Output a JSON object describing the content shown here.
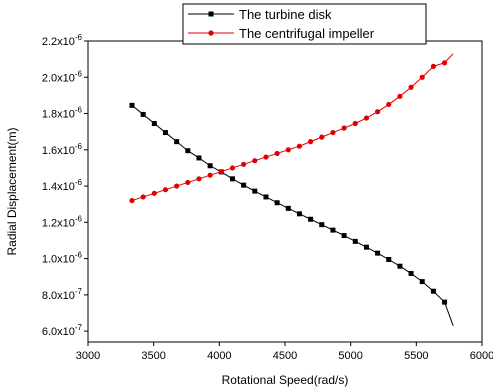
{
  "chart_data": {
    "type": "line",
    "xlabel": "Rotational Speed(rad/s)",
    "ylabel": "Radial Displacement(m)",
    "xlim": [
      3000,
      6000
    ],
    "ylim": [
      5.4e-07,
      2.2e-06
    ],
    "x_ticks": [
      3000,
      3500,
      4000,
      4500,
      5000,
      5500,
      6000
    ],
    "x_tick_labels": [
      "3000",
      "3500",
      "4000",
      "4500",
      "5000",
      "5500",
      "6000"
    ],
    "y_ticks": [
      6e-07,
      8e-07,
      1e-06,
      1.2e-06,
      1.4e-06,
      1.6e-06,
      1.8e-06,
      2e-06,
      2.2e-06
    ],
    "y_tick_mantissas": [
      "6.0x10",
      "8.0x10",
      "1.0x10",
      "1.2x10",
      "1.4x10",
      "1.6x10",
      "1.8x10",
      "2.0x10",
      "2.2x10"
    ],
    "y_tick_exponents": [
      "-7",
      "-7",
      "-6",
      "-6",
      "-6",
      "-6",
      "-6",
      "-6",
      "-6"
    ],
    "grid": false,
    "legend_position": "top-right",
    "series": [
      {
        "name": "The turbine disk",
        "color": "#000000",
        "marker": "square",
        "x": [
          3335,
          3420,
          3505,
          3590,
          3675,
          3760,
          3845,
          3930,
          4015,
          4100,
          4185,
          4270,
          4355,
          4440,
          4525,
          4610,
          4695,
          4780,
          4865,
          4950,
          5035,
          5120,
          5205,
          5290,
          5375,
          5460,
          5545,
          5630,
          5715
        ],
        "y": [
          1.845e-06,
          1.795e-06,
          1.745e-06,
          1.695e-06,
          1.645e-06,
          1.595e-06,
          1.555e-06,
          1.512e-06,
          1.478e-06,
          1.44e-06,
          1.405e-06,
          1.372e-06,
          1.34e-06,
          1.308e-06,
          1.277e-06,
          1.247e-06,
          1.217e-06,
          1.187e-06,
          1.157e-06,
          1.127e-06,
          1.095e-06,
          1.063e-06,
          1.03e-06,
          9.95e-07,
          9.58e-07,
          9.18e-07,
          8.73e-07,
          8.2e-07,
          7.6e-07
        ],
        "line_end": [
          5780,
          6.3e-07
        ]
      },
      {
        "name": "The centrifugal impeller",
        "color": "#e00000",
        "marker": "circle",
        "x": [
          3335,
          3420,
          3505,
          3590,
          3675,
          3760,
          3845,
          3930,
          4015,
          4100,
          4185,
          4270,
          4355,
          4440,
          4525,
          4610,
          4695,
          4780,
          4865,
          4950,
          5035,
          5120,
          5205,
          5290,
          5375,
          5460,
          5545,
          5630,
          5715
        ],
        "y": [
          1.32e-06,
          1.34e-06,
          1.36e-06,
          1.38e-06,
          1.4e-06,
          1.42e-06,
          1.44e-06,
          1.46e-06,
          1.48e-06,
          1.5e-06,
          1.52e-06,
          1.54e-06,
          1.56e-06,
          1.58e-06,
          1.6e-06,
          1.62e-06,
          1.645e-06,
          1.67e-06,
          1.695e-06,
          1.72e-06,
          1.745e-06,
          1.775e-06,
          1.81e-06,
          1.85e-06,
          1.895e-06,
          1.945e-06,
          2e-06,
          2.06e-06,
          2.08e-06
        ],
        "line_end": [
          5780,
          2.13e-06
        ]
      }
    ]
  }
}
